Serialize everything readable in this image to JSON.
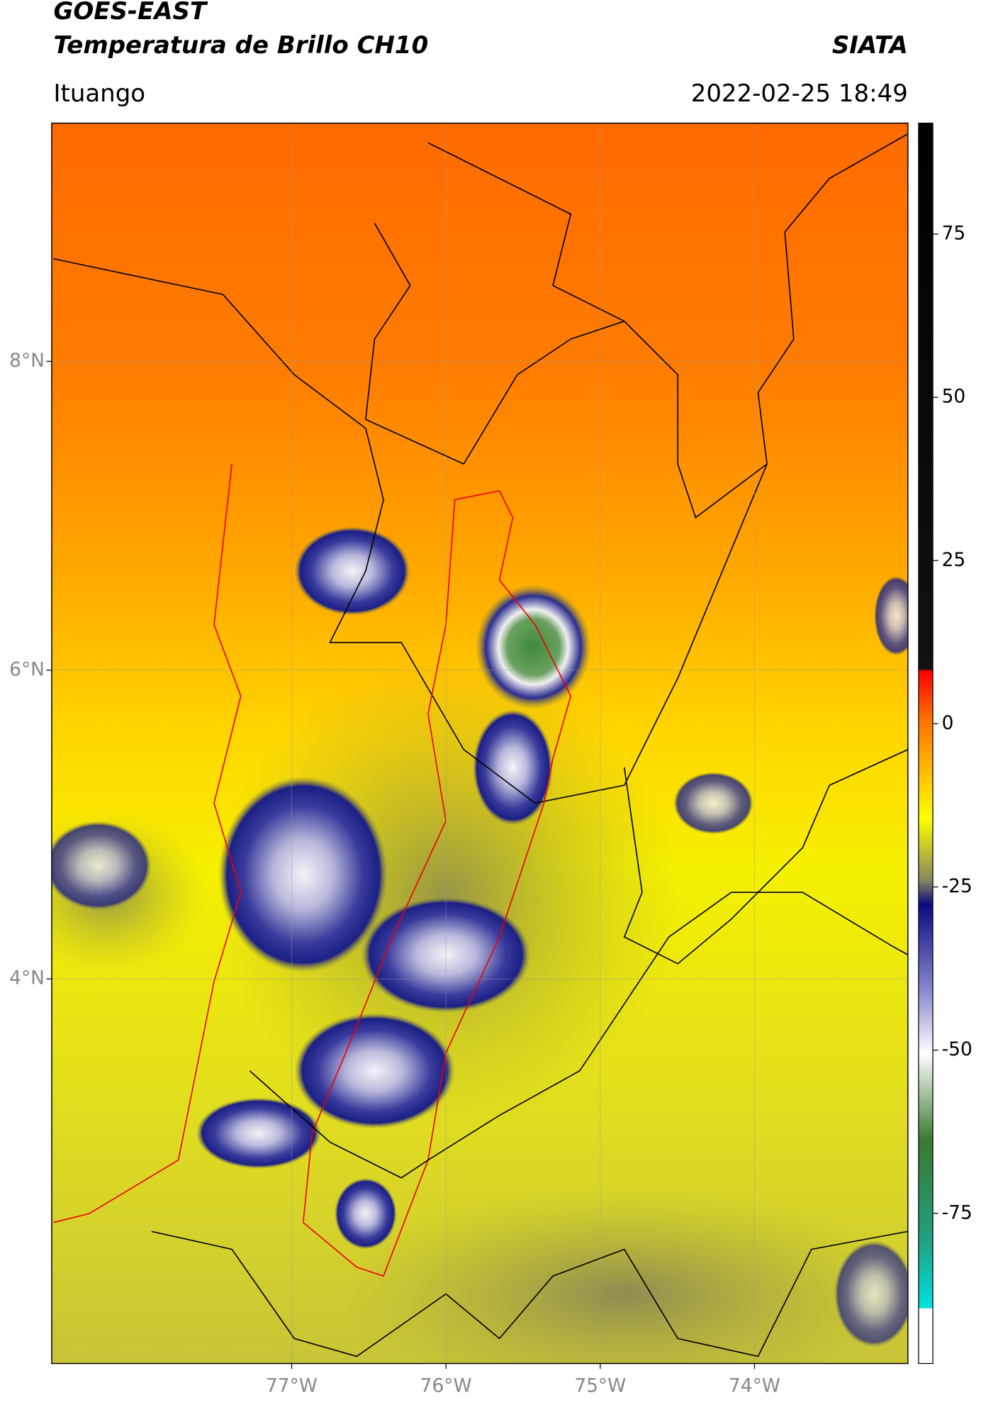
{
  "header": {
    "title": "GOES-EAST",
    "subtitle": "Temperatura de Brillo CH10",
    "brand": "SIATA",
    "location": "Ituango",
    "datetime": "2022-02-25 18:49"
  },
  "map": {
    "xlim": [
      -78.555,
      -73.006
    ],
    "ylim": [
      1.509,
      9.543
    ],
    "xticks": [
      {
        "value": -77,
        "label": "77°W"
      },
      {
        "value": -76,
        "label": "76°W"
      },
      {
        "value": -75,
        "label": "75°W"
      },
      {
        "value": -74,
        "label": "74°W"
      }
    ],
    "yticks": [
      {
        "value": 8,
        "label": "8°N"
      },
      {
        "value": 6,
        "label": "6°N"
      },
      {
        "value": 4,
        "label": "4°N"
      }
    ],
    "grid": true
  },
  "colorbar": {
    "lim": [
      -98,
      92
    ],
    "ticks": [
      75,
      50,
      25,
      0,
      -25,
      -50,
      -75
    ]
  }
}
